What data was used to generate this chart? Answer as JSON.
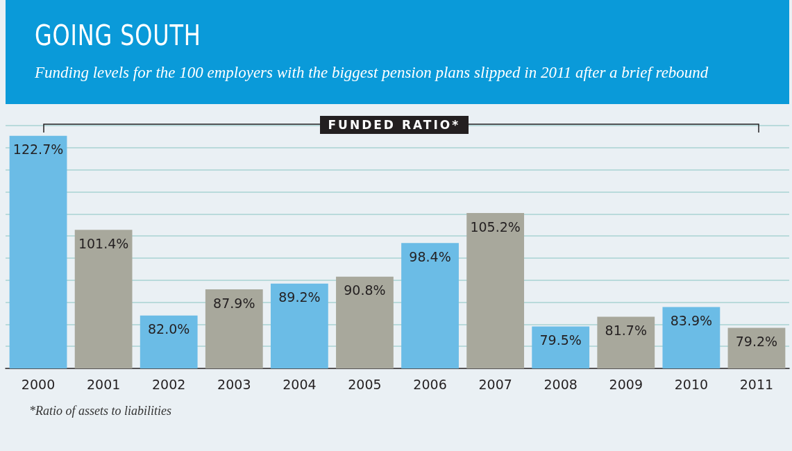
{
  "chart_data": {
    "type": "bar",
    "title": "GOING SOUTH",
    "subtitle": "Funding levels for the 100 employers with the biggest pension plans slipped in 2011 after a brief rebound",
    "categories": [
      "2000",
      "2001",
      "2002",
      "2003",
      "2004",
      "2005",
      "2006",
      "2007",
      "2008",
      "2009",
      "2010",
      "2011"
    ],
    "values": [
      122.7,
      101.4,
      82.0,
      87.9,
      89.2,
      90.8,
      98.4,
      105.2,
      79.5,
      81.7,
      83.9,
      79.2
    ],
    "value_labels": [
      "122.7%",
      "101.4%",
      "82.0%",
      "87.9%",
      "89.2%",
      "90.8%",
      "98.4%",
      "105.2%",
      "79.5%",
      "81.7%",
      "83.9%",
      "79.2%"
    ],
    "colors": [
      "#6bbce6",
      "#a8a89c",
      "#6bbce6",
      "#a8a89c",
      "#6bbce6",
      "#a8a89c",
      "#6bbce6",
      "#a8a89c",
      "#6bbce6",
      "#a8a89c",
      "#6bbce6",
      "#a8a89c"
    ],
    "ylim": [
      70,
      125
    ],
    "yticks": [
      {
        "value": 75,
        "label": null
      },
      {
        "value": 80,
        "label": null
      },
      {
        "value": 85,
        "label": null
      },
      {
        "value": 90,
        "label": null
      },
      {
        "value": 95,
        "label": null
      },
      {
        "value": 100,
        "label": null
      },
      {
        "value": 105,
        "label": null
      },
      {
        "value": 110,
        "label": null
      },
      {
        "value": 115,
        "label": null
      },
      {
        "value": 120,
        "label": null
      },
      {
        "value": 125,
        "label": null
      }
    ],
    "grid": "y",
    "tick_labels": "x",
    "annotations": [
      "FUNDED RATIO*",
      "*Ratio of assets to liabilities"
    ]
  }
}
